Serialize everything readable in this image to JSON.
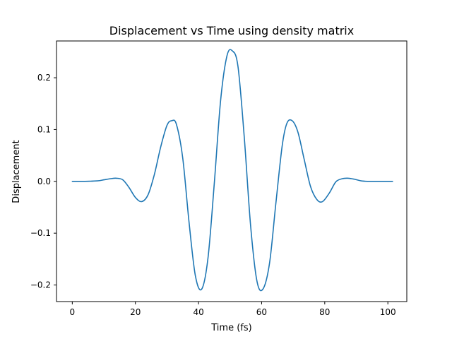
{
  "chart_data": {
    "type": "line",
    "title": "Displacement vs Time using density matrix",
    "xlabel": "Time (fs)",
    "ylabel": "Displacement",
    "xlim": [
      -5,
      106
    ],
    "ylim": [
      -0.232,
      0.271
    ],
    "x_ticks": [
      0,
      20,
      40,
      60,
      80,
      100
    ],
    "y_ticks": [
      -0.2,
      -0.1,
      0.0,
      0.1,
      0.2
    ],
    "x_tick_labels": [
      "0",
      "20",
      "40",
      "60",
      "80",
      "100"
    ],
    "y_tick_labels": [
      "−0.2",
      "−0.1",
      "0.0",
      "0.1",
      "0.2"
    ],
    "grid": false,
    "series": [
      {
        "color": "#1f77b4",
        "x": [
          0,
          4,
          8,
          10,
          12,
          14,
          16,
          18,
          20,
          22,
          24,
          26,
          28,
          30,
          31.5,
          33,
          35,
          37,
          39,
          41,
          43,
          45,
          47,
          49,
          50.7,
          52.5,
          54.5,
          56.5,
          58.5,
          60.4,
          62.5,
          64.5,
          66.5,
          68,
          69.7,
          71.5,
          73.5,
          75.5,
          77.5,
          79.3,
          81.5,
          83.5,
          85.5,
          87.5,
          89.5,
          91.5,
          93.5,
          96,
          100,
          101.5
        ],
        "y": [
          0,
          0,
          0.001,
          0.003,
          0.005,
          0.006,
          0.003,
          -0.012,
          -0.031,
          -0.039,
          -0.026,
          0.013,
          0.066,
          0.108,
          0.117,
          0.11,
          0.045,
          -0.079,
          -0.182,
          -0.208,
          -0.148,
          -0.004,
          0.156,
          0.242,
          0.252,
          0.222,
          0.085,
          -0.085,
          -0.192,
          -0.208,
          -0.158,
          -0.043,
          0.068,
          0.112,
          0.117,
          0.095,
          0.042,
          -0.01,
          -0.035,
          -0.039,
          -0.022,
          -0.001,
          0.005,
          0.006,
          0.004,
          0.001,
          0,
          0,
          0,
          0
        ]
      }
    ]
  }
}
